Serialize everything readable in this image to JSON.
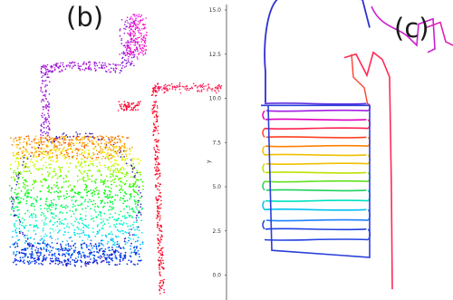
{
  "panels": {
    "left_label": "(b)",
    "right_label": "(c)"
  },
  "chart_data": [
    {
      "panel": "(b)",
      "type": "scatter",
      "title": "",
      "xlabel": "",
      "ylabel": "",
      "description_colors": [
        "#2020c8",
        "#1e90ff",
        "#00e0e0",
        "#20d020",
        "#e0e000",
        "#ff9000",
        "#ff2020",
        "#ff00c0",
        "#8a2be2"
      ]
    },
    {
      "panel": "(c)",
      "type": "line",
      "title": "",
      "xlabel": "",
      "ylabel": "y",
      "yticks": [
        0.0,
        2.5,
        5.0,
        7.5,
        10.0,
        12.5,
        15.0,
        17.5
      ],
      "ytick_labels": [
        "0.0",
        "2.5",
        "5.0",
        "7.5",
        "10.0",
        "12.5",
        "15.0",
        "17.5"
      ],
      "ylim": [
        -1,
        18.5
      ],
      "grid": false,
      "sweep_rows_y": [
        2.0,
        2.6,
        3.1,
        3.7,
        4.2,
        4.8,
        5.3,
        5.8,
        6.3,
        6.8,
        7.3,
        7.8,
        8.3,
        8.8,
        9.3,
        9.7
      ],
      "sweep_x_range": [
        0.0,
        4.4
      ],
      "colors": [
        "#2040e0",
        "#2080ff",
        "#00c0f0",
        "#00e0c0",
        "#20d060",
        "#60e020",
        "#c0e000",
        "#f0c000",
        "#ff8000",
        "#ff4020",
        "#ff2050",
        "#e000c0",
        "#a020e0",
        "#6030e0"
      ]
    }
  ]
}
